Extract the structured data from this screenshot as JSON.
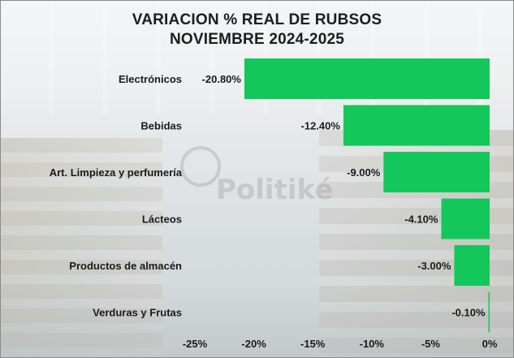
{
  "title_line1": "VARIACION % REAL DE RUBSOS",
  "title_line2": "NOVIEMBRE 2024-2025",
  "watermark": "Politiké",
  "colors": {
    "bar": "#14c75a",
    "text": "#1b1b1b"
  },
  "chart_data": {
    "type": "bar",
    "orientation": "horizontal",
    "categories": [
      "Electrónicos",
      "Bebidas",
      "Art. Limpieza y perfumería",
      "Lácteos",
      "Productos de almacén",
      "Verduras y Frutas"
    ],
    "values": [
      -20.8,
      -12.4,
      -9.0,
      -4.1,
      -3.0,
      -0.1
    ],
    "value_labels": [
      "-20.80%",
      "-12.40%",
      "-9.00%",
      "-4.10%",
      "-3.00%",
      "-0.10%"
    ],
    "xlim": [
      -25,
      0
    ],
    "xticks": [
      -25,
      -20,
      -15,
      -10,
      -5,
      0
    ],
    "xtick_labels": [
      "-25%",
      "-20%",
      "-15%",
      "-10%",
      "-5%",
      "0%"
    ],
    "grid": false,
    "legend": "none"
  }
}
